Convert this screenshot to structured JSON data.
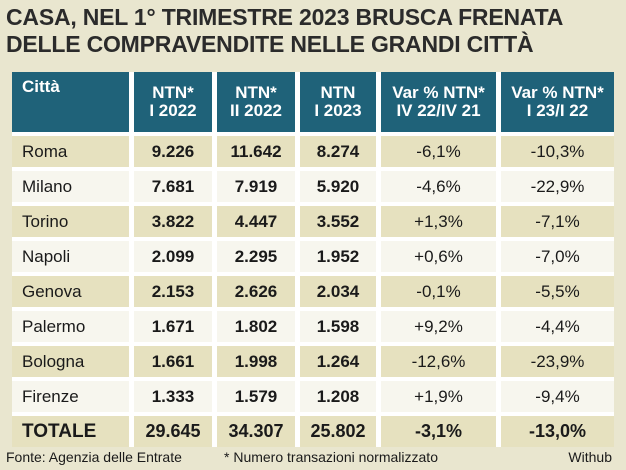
{
  "chart_data": {
    "type": "table",
    "title_lines": [
      "CASA, NEL 1° TRIMESTRE 2023 BRUSCA FRENATA",
      "DELLE COMPRAVENDITE NELLE GRANDI CITTÀ"
    ],
    "columns": [
      {
        "lines": [
          "Città"
        ]
      },
      {
        "lines": [
          "NTN*",
          "I 2022"
        ]
      },
      {
        "lines": [
          "NTN*",
          "II 2022"
        ]
      },
      {
        "lines": [
          "NTN",
          "I 2023"
        ]
      },
      {
        "lines": [
          "Var % NTN*",
          "IV 22/IV 21"
        ]
      },
      {
        "lines": [
          "Var % NTN*",
          "I 23/I 22"
        ]
      }
    ],
    "rows": [
      {
        "city": "Roma",
        "ntn_i_2022": "9.226",
        "ntn_ii_2022": "11.642",
        "ntn_i_2023": "8.274",
        "var_iv22_iv21": "-6,1%",
        "var_i23_i22": "-10,3%"
      },
      {
        "city": "Milano",
        "ntn_i_2022": "7.681",
        "ntn_ii_2022": "7.919",
        "ntn_i_2023": "5.920",
        "var_iv22_iv21": "-4,6%",
        "var_i23_i22": "-22,9%"
      },
      {
        "city": "Torino",
        "ntn_i_2022": "3.822",
        "ntn_ii_2022": "4.447",
        "ntn_i_2023": "3.552",
        "var_iv22_iv21": "+1,3%",
        "var_i23_i22": "-7,1%"
      },
      {
        "city": "Napoli",
        "ntn_i_2022": "2.099",
        "ntn_ii_2022": "2.295",
        "ntn_i_2023": "1.952",
        "var_iv22_iv21": "+0,6%",
        "var_i23_i22": "-7,0%"
      },
      {
        "city": "Genova",
        "ntn_i_2022": "2.153",
        "ntn_ii_2022": "2.626",
        "ntn_i_2023": "2.034",
        "var_iv22_iv21": "-0,1%",
        "var_i23_i22": "-5,5%"
      },
      {
        "city": "Palermo",
        "ntn_i_2022": "1.671",
        "ntn_ii_2022": "1.802",
        "ntn_i_2023": "1.598",
        "var_iv22_iv21": "+9,2%",
        "var_i23_i22": "-4,4%"
      },
      {
        "city": "Bologna",
        "ntn_i_2022": "1.661",
        "ntn_ii_2022": "1.998",
        "ntn_i_2023": "1.264",
        "var_iv22_iv21": "-12,6%",
        "var_i23_i22": "-23,9%"
      },
      {
        "city": "Firenze",
        "ntn_i_2022": "1.333",
        "ntn_ii_2022": "1.579",
        "ntn_i_2023": "1.208",
        "var_iv22_iv21": "+1,9%",
        "var_i23_i22": "-9,4%"
      }
    ],
    "total": {
      "city": "TOTALE",
      "ntn_i_2022": "29.645",
      "ntn_ii_2022": "34.307",
      "ntn_i_2023": "25.802",
      "var_iv22_iv21": "-3,1%",
      "var_i23_i22": "-13,0%"
    },
    "footer": {
      "source": "Fonte: Agenzia delle Entrate",
      "note": "* Numero transazioni normalizzato",
      "credit": "Withub"
    },
    "colors": {
      "header_bg": "#1f6279",
      "row_shade": "#e6e1bf",
      "row_light": "#f7f6ee",
      "page_bg": "#e9e6cf"
    }
  }
}
